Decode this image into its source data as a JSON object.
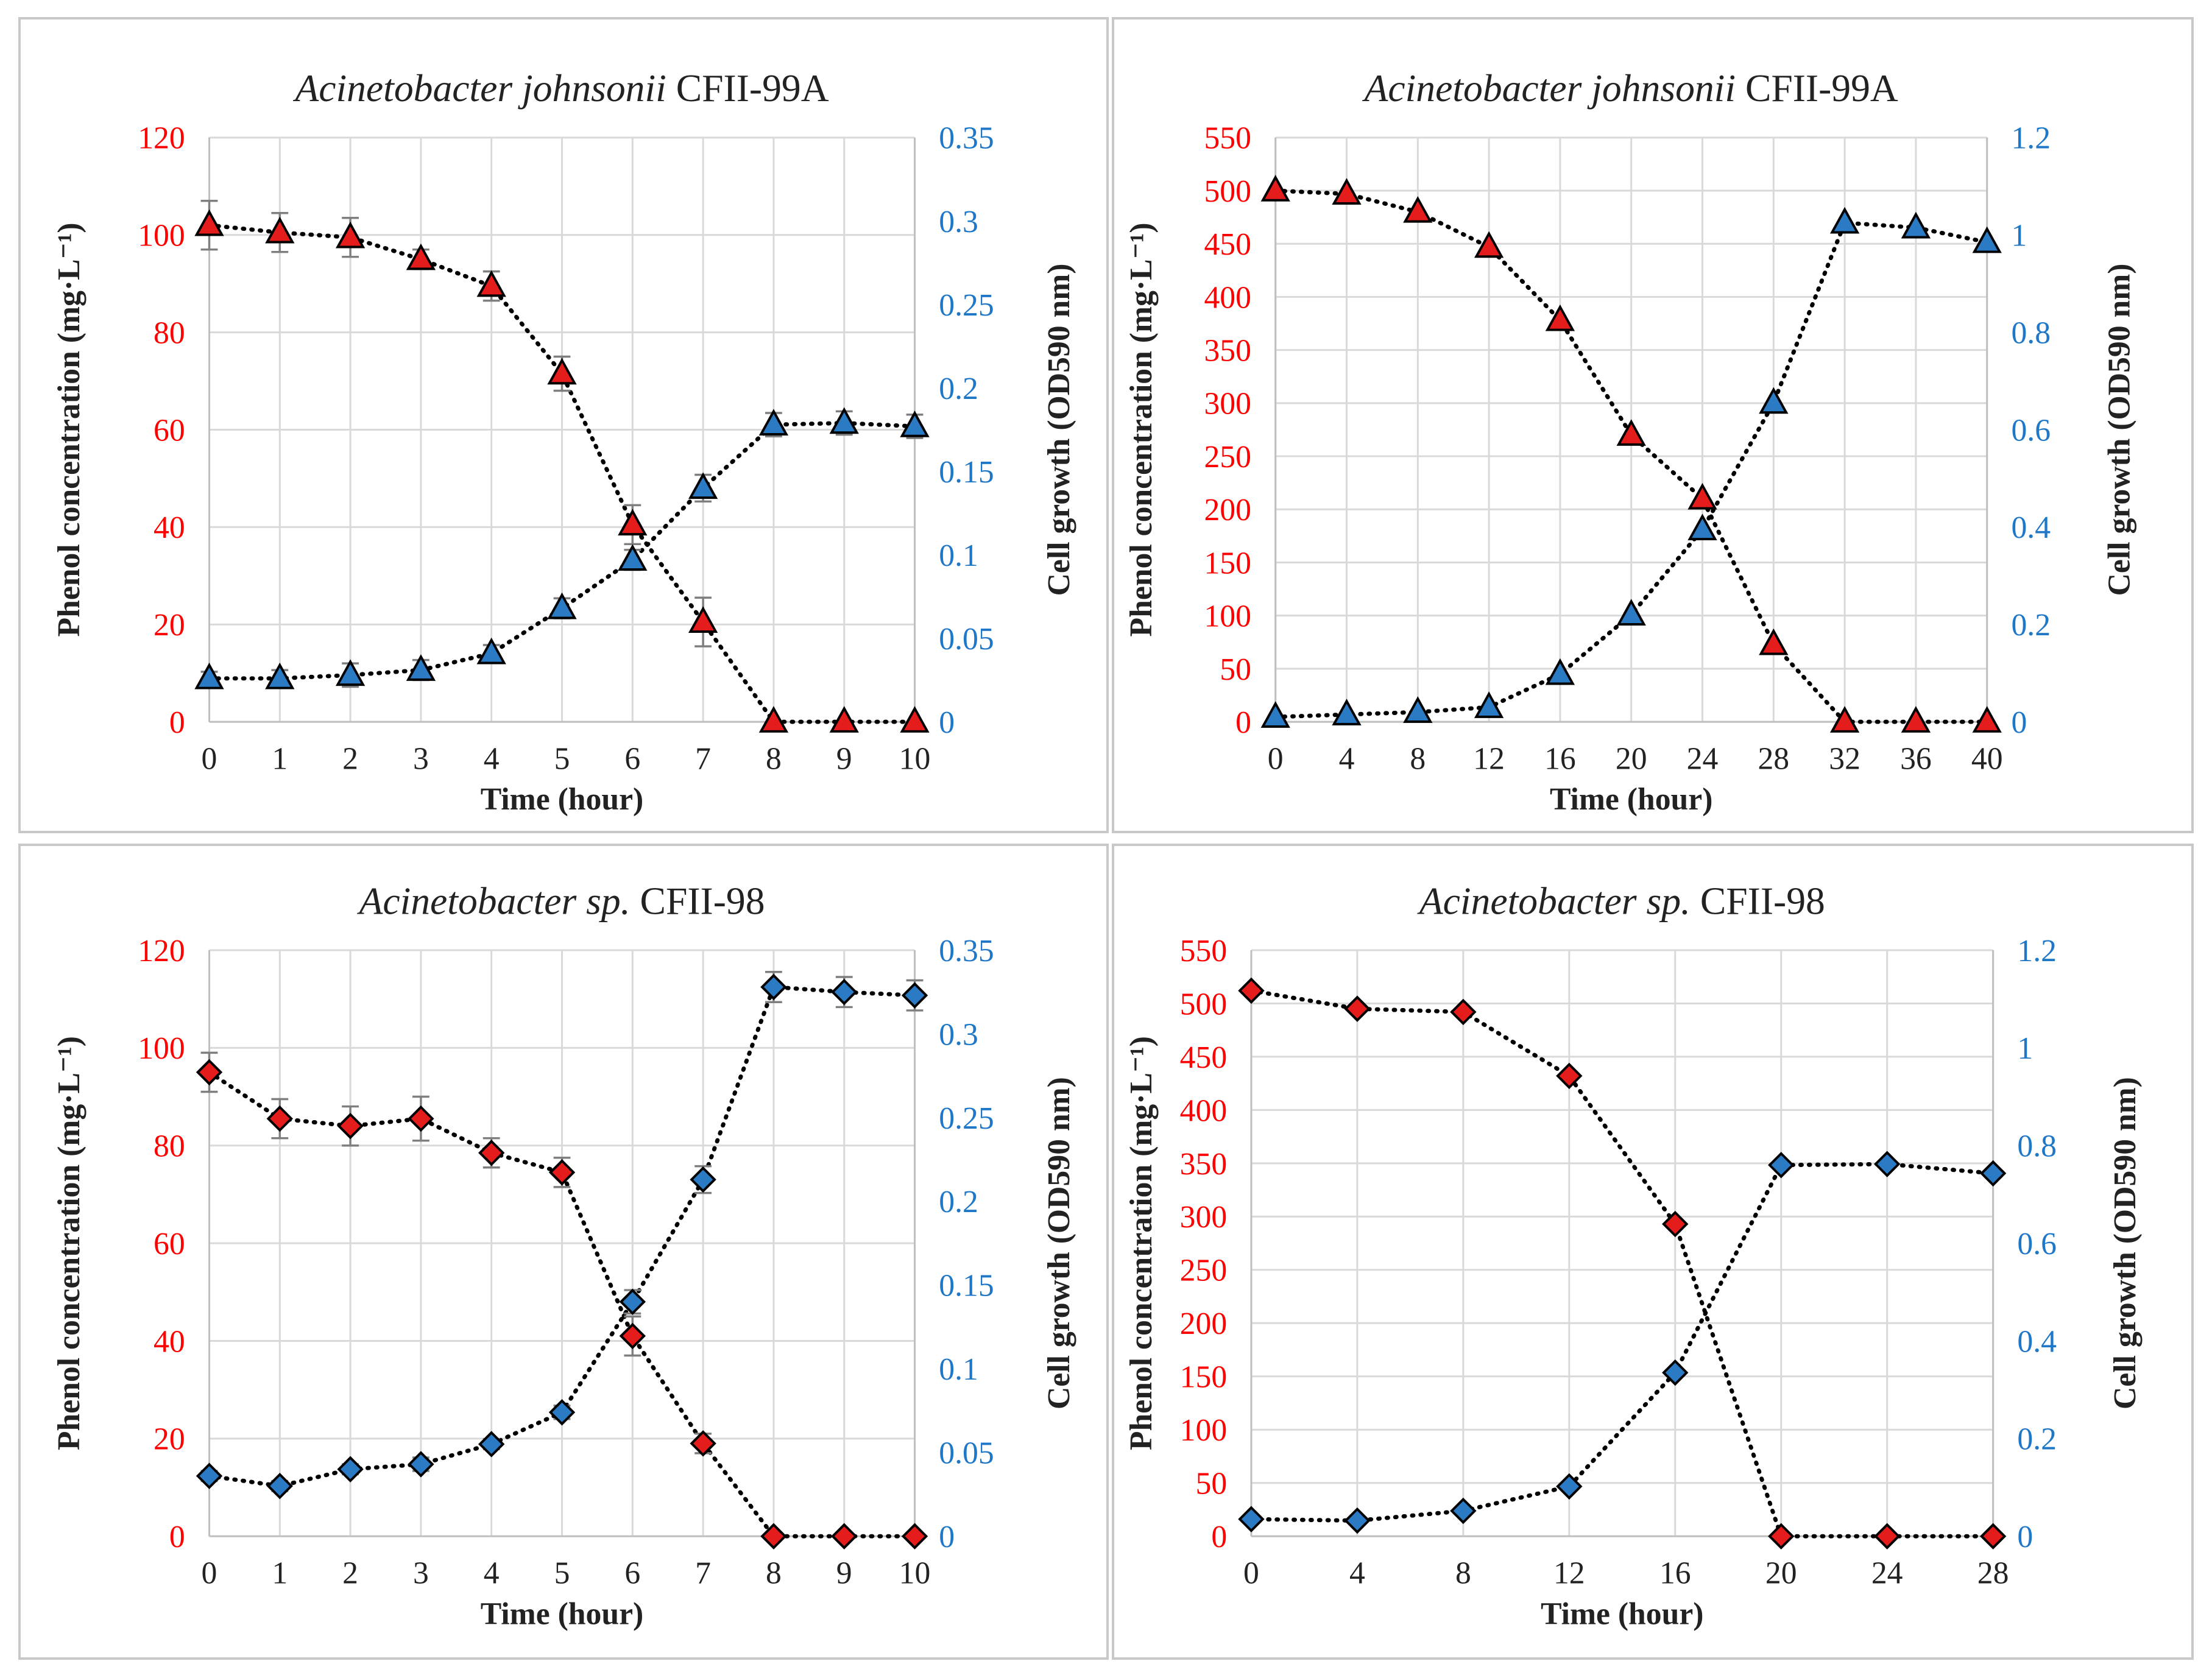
{
  "colors": {
    "phenol": "#e41c1c",
    "growth": "#2a7bc4",
    "left_tick": "#ff0000",
    "right_tick": "#1f77c8",
    "marker_stroke": "#000000"
  },
  "chart_data": [
    {
      "type": "line",
      "title_italic": "Acinetobacter johnsonii",
      "title_rest": "CFII-99A",
      "marker": "triangle",
      "xlabel": "Time (hour)",
      "ylabel_left": "Phenol concentration (mg·L⁻¹)",
      "ylabel_right": "Cell growth (OD590 nm)",
      "x": [
        0,
        1,
        2,
        3,
        4,
        5,
        6,
        7,
        8,
        9,
        10
      ],
      "xlim": [
        0,
        10
      ],
      "ylim_left": [
        0,
        120
      ],
      "yticks_left": [
        0,
        20,
        40,
        60,
        80,
        100,
        120
      ],
      "ylim_right": [
        0,
        0.35
      ],
      "yticks_right": [
        0,
        0.05,
        0.1,
        0.15,
        0.2,
        0.25,
        0.3,
        0.35
      ],
      "series": [
        {
          "name": "Phenol concentration",
          "axis": "left",
          "values": [
            102,
            100.5,
            99.5,
            95,
            89.5,
            71.5,
            40.5,
            20.5,
            0,
            0,
            0
          ],
          "errors": [
            5,
            4,
            4,
            2,
            3,
            3.5,
            4,
            5,
            0,
            0,
            0
          ]
        },
        {
          "name": "Cell growth",
          "axis": "right",
          "values": [
            0.026,
            0.026,
            0.028,
            0.031,
            0.041,
            0.068,
            0.097,
            0.14,
            0.178,
            0.179,
            0.177
          ],
          "errors": [
            0.004,
            0.005,
            0.007,
            0.006,
            0.005,
            0.006,
            0.006,
            0.008,
            0.007,
            0.007,
            0.007
          ]
        }
      ]
    },
    {
      "type": "line",
      "title_italic": "Acinetobacter johnsonii",
      "title_rest": "CFII-99A",
      "marker": "triangle",
      "xlabel": "Time (hour)",
      "ylabel_left": "Phenol concentration (mg·L⁻¹)",
      "ylabel_right": "Cell growth (OD590 nm)",
      "x": [
        0,
        4,
        8,
        12,
        16,
        20,
        24,
        28,
        32,
        36,
        40
      ],
      "xlim": [
        0,
        40
      ],
      "ylim_left": [
        0,
        550
      ],
      "yticks_left": [
        0,
        50,
        100,
        150,
        200,
        250,
        300,
        350,
        400,
        450,
        500,
        550
      ],
      "ylim_right": [
        0,
        1.2
      ],
      "yticks_right": [
        0,
        0.2,
        0.4,
        0.6,
        0.8,
        1,
        1.2
      ],
      "series": [
        {
          "name": "Phenol concentration",
          "axis": "left",
          "values": [
            500,
            497,
            480,
            447,
            378,
            270,
            210,
            73,
            0,
            0,
            0
          ]
        },
        {
          "name": "Cell growth",
          "axis": "right",
          "values": [
            0.01,
            0.015,
            0.02,
            0.03,
            0.098,
            0.22,
            0.395,
            0.655,
            1.025,
            1.015,
            0.985
          ]
        }
      ]
    },
    {
      "type": "line",
      "title_italic": "Acinetobacter sp.",
      "title_rest": "CFII-98",
      "marker": "diamond",
      "xlabel": "Time (hour)",
      "ylabel_left": "Phenol concentration (mg·L⁻¹)",
      "ylabel_right": "Cell growth (OD590 nm)",
      "x": [
        0,
        1,
        2,
        3,
        4,
        5,
        6,
        7,
        8,
        9,
        10
      ],
      "xlim": [
        0,
        10
      ],
      "ylim_left": [
        0,
        120
      ],
      "yticks_left": [
        0,
        20,
        40,
        60,
        80,
        100,
        120
      ],
      "ylim_right": [
        0,
        0.35
      ],
      "yticks_right": [
        0,
        0.05,
        0.1,
        0.15,
        0.2,
        0.25,
        0.3,
        0.35
      ],
      "series": [
        {
          "name": "Phenol concentration",
          "axis": "left",
          "values": [
            95,
            85.5,
            84,
            85.5,
            78.5,
            74.5,
            41,
            19,
            0,
            0,
            0
          ],
          "errors": [
            4,
            4,
            4,
            4.5,
            3,
            3,
            4,
            2,
            0,
            0,
            0
          ]
        },
        {
          "name": "Cell growth",
          "axis": "right",
          "values": [
            0.036,
            0.03,
            0.04,
            0.043,
            0.055,
            0.074,
            0.14,
            0.213,
            0.328,
            0.325,
            0.323
          ],
          "errors": [
            0.003,
            0.003,
            0.003,
            0.004,
            0.003,
            0.004,
            0.007,
            0.008,
            0.009,
            0.009,
            0.009
          ]
        }
      ]
    },
    {
      "type": "line",
      "title_italic": "Acinetobacter sp.",
      "title_rest": "CFII-98",
      "marker": "diamond",
      "xlabel": "Time (hour)",
      "ylabel_left": "Phenol concentration (mg·L⁻¹)",
      "ylabel_right": "Cell growth (OD590 nm)",
      "x": [
        0,
        4,
        8,
        12,
        16,
        20,
        24,
        28
      ],
      "xlim": [
        0,
        28
      ],
      "ylim_left": [
        0,
        550
      ],
      "yticks_left": [
        0,
        50,
        100,
        150,
        200,
        250,
        300,
        350,
        400,
        450,
        500,
        550
      ],
      "ylim_right": [
        0,
        1.2
      ],
      "yticks_right": [
        0,
        0.2,
        0.4,
        0.6,
        0.8,
        1,
        1.2
      ],
      "series": [
        {
          "name": "Phenol concentration",
          "axis": "left",
          "values": [
            512,
            495,
            492,
            432,
            293,
            0,
            0,
            0
          ]
        },
        {
          "name": "Cell growth",
          "axis": "right",
          "values": [
            0.035,
            0.032,
            0.052,
            0.102,
            0.335,
            0.76,
            0.762,
            0.743
          ]
        }
      ]
    }
  ]
}
